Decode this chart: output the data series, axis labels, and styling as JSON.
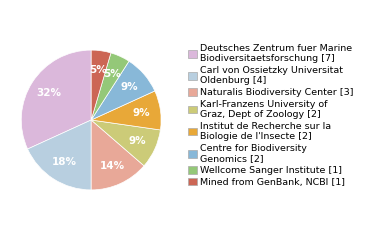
{
  "labels": [
    "Deutsches Zentrum fuer Marine\nBiodiversitaetsforschung [7]",
    "Carl von Ossietzky Universitat\nOldenburg [4]",
    "Naturalis Biodiversity Center [3]",
    "Karl-Franzens University of\nGraz, Dept of Zoology [2]",
    "Institut de Recherche sur la\nBiologie de l'Insecte [2]",
    "Centre for Biodiversity\nGenomics [2]",
    "Wellcome Sanger Institute [1]",
    "Mined from GenBank, NCBI [1]"
  ],
  "values": [
    7,
    4,
    3,
    2,
    2,
    2,
    1,
    1
  ],
  "colors": [
    "#dbb8db",
    "#b8cfe0",
    "#e8a898",
    "#cccb78",
    "#e8a838",
    "#88b8d8",
    "#94c878",
    "#cc6655"
  ],
  "startangle": 90,
  "legend_fontsize": 6.8,
  "pct_fontsize": 7.5
}
